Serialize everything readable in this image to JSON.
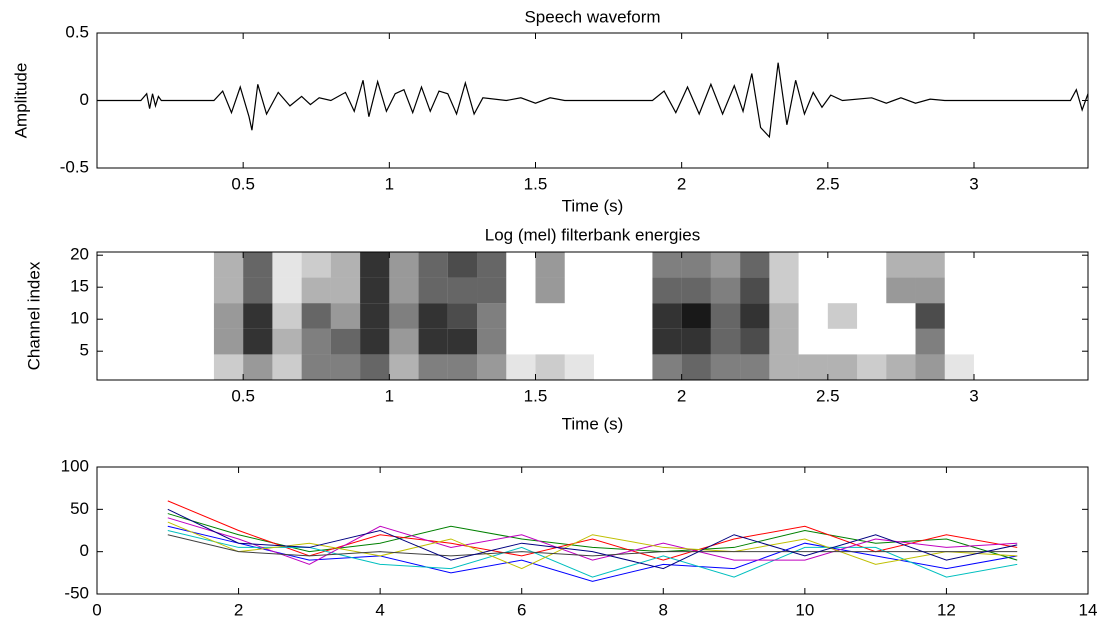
{
  "chart_data": [
    {
      "type": "waveform",
      "title": "Speech waveform",
      "x_label": "Time (s)",
      "y_label": "Amplitude",
      "x": [
        0,
        0.15,
        0.17,
        0.18,
        0.19,
        0.2,
        0.21,
        0.22,
        0.25,
        0.4,
        0.43,
        0.46,
        0.49,
        0.52,
        0.53,
        0.55,
        0.58,
        0.62,
        0.66,
        0.7,
        0.73,
        0.76,
        0.8,
        0.85,
        0.88,
        0.91,
        0.93,
        0.96,
        0.99,
        1.02,
        1.05,
        1.08,
        1.11,
        1.14,
        1.17,
        1.2,
        1.23,
        1.26,
        1.29,
        1.32,
        1.4,
        1.45,
        1.5,
        1.55,
        1.6,
        1.9,
        1.94,
        1.98,
        2.02,
        2.06,
        2.1,
        2.14,
        2.18,
        2.21,
        2.24,
        2.27,
        2.3,
        2.33,
        2.36,
        2.39,
        2.42,
        2.45,
        2.48,
        2.51,
        2.55,
        2.65,
        2.7,
        2.75,
        2.8,
        2.85,
        2.9,
        3.33,
        3.35,
        3.37,
        3.39
      ],
      "values": [
        0,
        0,
        0.05,
        -0.06,
        0.05,
        -0.04,
        0.03,
        0,
        0,
        0,
        0.07,
        -0.09,
        0.1,
        -0.12,
        -0.22,
        0.12,
        -0.1,
        0.06,
        -0.04,
        0.03,
        -0.03,
        0.02,
        0,
        0.06,
        -0.08,
        0.15,
        -0.12,
        0.14,
        -0.08,
        0.05,
        0.08,
        -0.09,
        0.1,
        -0.08,
        0.07,
        0.05,
        -0.1,
        0.13,
        -0.1,
        0.02,
        0,
        0.02,
        -0.02,
        0.02,
        0,
        0,
        0.07,
        -0.09,
        0.1,
        -0.1,
        0.12,
        -0.1,
        0.11,
        -0.08,
        0.2,
        -0.2,
        -0.27,
        0.28,
        -0.18,
        0.15,
        -0.1,
        0.06,
        -0.05,
        0.04,
        0,
        0.02,
        -0.02,
        0.02,
        -0.02,
        0.01,
        0,
        0,
        0.08,
        -0.07,
        0.05
      ],
      "color": "#000000",
      "xlim": [
        0,
        3.39
      ],
      "xticks": [
        0.5,
        1,
        1.5,
        2,
        2.5,
        3
      ],
      "ylim": [
        -0.5,
        0.5
      ],
      "yticks": [
        -0.5,
        0,
        0.5
      ]
    },
    {
      "type": "heatmap",
      "title": "Log (mel) filterbank energies",
      "x_label": "Time (s)",
      "y_label": "Channel index",
      "x": [
        0.05,
        0.15,
        0.25,
        0.35,
        0.45,
        0.55,
        0.65,
        0.75,
        0.85,
        0.95,
        1.05,
        1.15,
        1.25,
        1.35,
        1.45,
        1.55,
        1.65,
        1.75,
        1.85,
        1.95,
        2.05,
        2.15,
        2.25,
        2.35,
        2.45,
        2.55,
        2.65,
        2.75,
        2.85,
        2.95,
        3.05,
        3.15,
        3.25,
        3.35
      ],
      "y": [
        2.5,
        6.5,
        10.5,
        14.5,
        18.5
      ],
      "z": [
        [
          0,
          0,
          0,
          0,
          0.2,
          0.4,
          0.2,
          0.5,
          0.5,
          0.6,
          0.3,
          0.5,
          0.5,
          0.4,
          0.1,
          0.2,
          0.1,
          0,
          0,
          0.5,
          0.6,
          0.5,
          0.5,
          0.3,
          0.3,
          0.3,
          0.2,
          0.3,
          0.4,
          0.1,
          0,
          0,
          0,
          0
        ],
        [
          0,
          0,
          0,
          0,
          0.4,
          0.8,
          0.3,
          0.5,
          0.6,
          0.8,
          0.4,
          0.8,
          0.8,
          0.5,
          0,
          0,
          0,
          0,
          0,
          0.8,
          0.8,
          0.6,
          0.7,
          0.3,
          0,
          0,
          0,
          0,
          0.5,
          0,
          0,
          0,
          0,
          0
        ],
        [
          0,
          0,
          0,
          0,
          0.4,
          0.8,
          0.2,
          0.6,
          0.4,
          0.8,
          0.5,
          0.8,
          0.7,
          0.5,
          0,
          0,
          0,
          0,
          0,
          0.8,
          0.9,
          0.6,
          0.8,
          0.3,
          0,
          0.2,
          0,
          0,
          0.7,
          0,
          0,
          0,
          0,
          0
        ],
        [
          0,
          0,
          0,
          0,
          0.3,
          0.6,
          0.1,
          0.3,
          0.3,
          0.8,
          0.4,
          0.6,
          0.6,
          0.6,
          0,
          0.4,
          0,
          0,
          0,
          0.6,
          0.6,
          0.5,
          0.7,
          0.2,
          0,
          0,
          0,
          0.4,
          0.4,
          0,
          0,
          0,
          0,
          0
        ],
        [
          0,
          0,
          0,
          0,
          0.3,
          0.6,
          0.1,
          0.2,
          0.3,
          0.8,
          0.4,
          0.6,
          0.7,
          0.6,
          0,
          0.4,
          0,
          0,
          0,
          0.5,
          0.5,
          0.4,
          0.6,
          0.2,
          0,
          0,
          0,
          0.3,
          0.3,
          0,
          0,
          0,
          0,
          0
        ]
      ],
      "color": "#000000",
      "xlim": [
        0,
        3.39
      ],
      "xticks": [
        0.5,
        1,
        1.5,
        2,
        2.5,
        3
      ],
      "ylim": [
        0.5,
        20.5
      ],
      "yticks": [
        5,
        10,
        15,
        20
      ]
    },
    {
      "type": "line",
      "x": [
        1,
        2,
        3,
        4,
        5,
        6,
        7,
        8,
        9,
        10,
        11,
        12,
        13
      ],
      "series": [
        {
          "color": "#0000ff",
          "values": [
            30,
            10,
            -10,
            -5,
            -25,
            -10,
            -35,
            -15,
            -20,
            10,
            -5,
            -20,
            -5
          ]
        },
        {
          "color": "#008000",
          "values": [
            45,
            20,
            0,
            10,
            30,
            15,
            5,
            0,
            5,
            25,
            10,
            15,
            -10
          ]
        },
        {
          "color": "#ff0000",
          "values": [
            60,
            25,
            -5,
            20,
            10,
            -5,
            15,
            -10,
            15,
            30,
            0,
            20,
            5
          ]
        },
        {
          "color": "#00bfbf",
          "values": [
            25,
            5,
            5,
            -15,
            -20,
            5,
            -30,
            -5,
            -30,
            5,
            5,
            -30,
            -15
          ]
        },
        {
          "color": "#bf00bf",
          "values": [
            40,
            15,
            -15,
            30,
            5,
            20,
            -10,
            10,
            -10,
            -10,
            15,
            5,
            10
          ]
        },
        {
          "color": "#bfbf00",
          "values": [
            35,
            0,
            10,
            -5,
            15,
            -20,
            20,
            5,
            0,
            15,
            -15,
            0,
            -5
          ]
        },
        {
          "color": "#404040",
          "values": [
            20,
            0,
            -5,
            0,
            -5,
            0,
            -5,
            0,
            0,
            0,
            0,
            0,
            0
          ]
        },
        {
          "color": "#000080",
          "values": [
            50,
            10,
            5,
            25,
            -10,
            10,
            0,
            -20,
            20,
            -5,
            20,
            -10,
            8
          ]
        }
      ],
      "xlim": [
        0,
        14
      ],
      "xticks": [
        0,
        2,
        4,
        6,
        8,
        10,
        12,
        14
      ],
      "ylim": [
        -50,
        100
      ],
      "yticks": [
        -50,
        0,
        50,
        100
      ]
    }
  ]
}
